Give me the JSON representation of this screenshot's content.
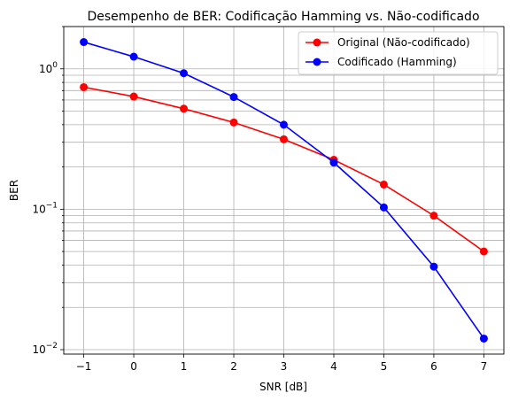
{
  "chart_data": {
    "type": "line",
    "title": "Desempenho de BER: Codificação Hamming vs. Não-codificado",
    "xlabel": "SNR [dB]",
    "ylabel": "BER",
    "yscale": "log",
    "xlim": [
      -1.4,
      7.4
    ],
    "ylim": [
      0.0093,
      2.0
    ],
    "grid": "both (major and minor)",
    "legend_position": "top-right",
    "x": [
      -1,
      0,
      1,
      2,
      3,
      4,
      5,
      6,
      7
    ],
    "x_tick_labels": [
      "−1",
      "0",
      "1",
      "2",
      "3",
      "4",
      "5",
      "6",
      "7"
    ],
    "series": [
      {
        "name": "Original (Não-codificado)",
        "color": "#ff0000",
        "marker": "circle",
        "values": [
          0.74,
          0.635,
          0.52,
          0.415,
          0.315,
          0.225,
          0.15,
          0.09,
          0.05
        ]
      },
      {
        "name": "Codificado (Hamming)",
        "color": "#0000ff",
        "marker": "circle",
        "values": [
          1.55,
          1.22,
          0.93,
          0.63,
          0.4,
          0.215,
          0.103,
          0.039,
          0.012
        ]
      }
    ]
  }
}
